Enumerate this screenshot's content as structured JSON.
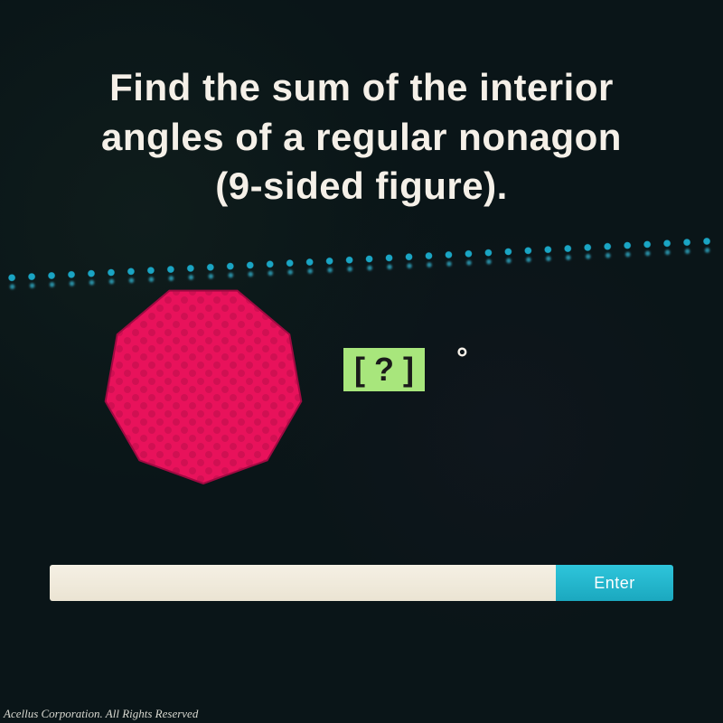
{
  "question": {
    "line1": "Find the sum of the interior",
    "line2": "angles of a regular nonagon",
    "line3": "(9-sided figure)."
  },
  "shape": {
    "type": "nonagon",
    "sides": 9,
    "fill": "#e8125b",
    "pattern_color": "#c00f4d",
    "stroke": "#a00a42"
  },
  "answer_placeholder": "[ ? ]",
  "degree_symbol": "°",
  "input": {
    "value": "",
    "placeholder": ""
  },
  "enter_label": "Enter",
  "footer": "Acellus Corporation.  All Rights Reserved",
  "colors": {
    "bg": "#0a1518",
    "text": "#f5f0e8",
    "answer_box_bg": "#a8e67c",
    "answer_box_text": "#1a1a1a",
    "input_bg": "#f0ead9",
    "button_bg": "#22b9d0",
    "dot_color": "#1aa5c4"
  }
}
